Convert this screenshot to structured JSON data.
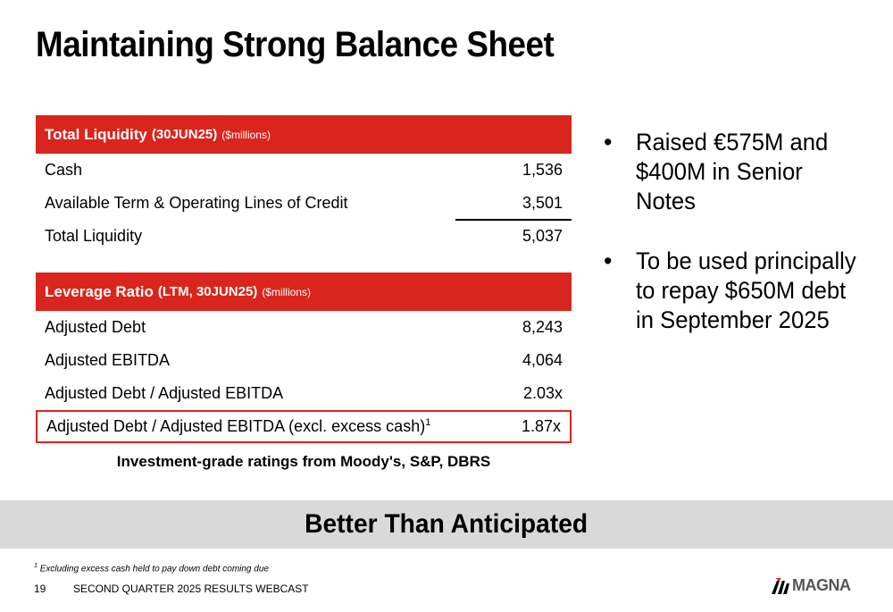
{
  "slide": {
    "title": "Maintaining Strong Balance Sheet",
    "page_number": "19",
    "footer_text": "SECOND QUARTER 2025 RESULTS WEBCAST",
    "footnote_marker": "1",
    "footnote_text": "Excluding excess cash held to pay down debt coming due",
    "logo_text": "MAGNA",
    "accent_color": "#d9251d"
  },
  "liquidity": {
    "header": "Total Liquidity",
    "header_date": "(30JUN25)",
    "header_unit": "($millions)",
    "rows": [
      {
        "label": "Cash",
        "value": "1,536"
      },
      {
        "label": "Available Term & Operating Lines of Credit",
        "value": "3,501"
      },
      {
        "label": "Total Liquidity",
        "value": "5,037"
      }
    ]
  },
  "leverage": {
    "header": "Leverage Ratio",
    "header_date": "(LTM, 30JUN25)",
    "header_unit": "($millions)",
    "rows": [
      {
        "label": "Adjusted Debt",
        "value": "8,243"
      },
      {
        "label": "Adjusted EBITDA",
        "value": "4,064"
      },
      {
        "label": "Adjusted Debt / Adjusted EBITDA",
        "value": "2.03x"
      },
      {
        "label": "Adjusted Debt / Adjusted EBITDA (excl. excess cash)",
        "value": "1.87x",
        "marker": "1"
      }
    ]
  },
  "ratings_note": "Investment-grade ratings from Moody's, S&P, DBRS",
  "bullets": [
    {
      "text": "Raised €575M and $400M in Senior Notes"
    },
    {
      "text": "To be used principally to repay $650M debt in September 2025"
    }
  ],
  "banner": "Better Than Anticipated"
}
